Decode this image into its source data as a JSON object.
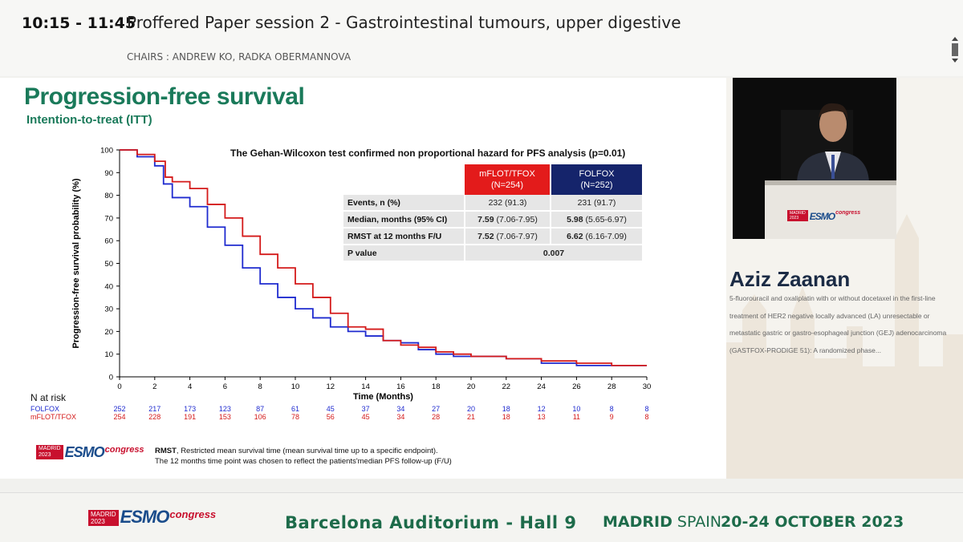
{
  "header": {
    "time": "10:15 - 11:45",
    "session": "Proffered Paper session 2 - Gastrointestinal tumours, upper digestive",
    "chairs": "CHAIRS : ANDREW KO, RADKA OBERMANNOVA"
  },
  "slide": {
    "title": "Progression-free survival",
    "subtitle": "Intention-to-treat (ITT)",
    "stats_title": "The Gehan-Wilcoxon test confirmed non proportional hazard for PFS analysis (p=0.01)",
    "stats_table": {
      "headers": [
        {
          "line1": "mFLOT/TFOX",
          "line2": "(N=254)"
        },
        {
          "line1": "FOLFOX",
          "line2": "(N=252)"
        }
      ],
      "rows": [
        {
          "label": "Events, n (%)",
          "a": "232 (91.3)",
          "b": "231 (91.7)"
        },
        {
          "label": "Median, months (95% CI)",
          "a_bold": "7.59",
          "a": "(7.06-7.95)",
          "b_bold": "5.98",
          "b": "(5.65-6.97)"
        },
        {
          "label": "RMST at 12 months F/U",
          "a_bold": "7.52",
          "a": "(7.06-7.97)",
          "b_bold": "6.62",
          "b": "(6.16-7.09)"
        },
        {
          "label": "P value",
          "merged": "0.007"
        }
      ]
    },
    "n_at_risk": {
      "label": "N at risk",
      "times": [
        0,
        2,
        4,
        6,
        8,
        10,
        12,
        14,
        16,
        18,
        20,
        22,
        24,
        26,
        28,
        30
      ],
      "rows": [
        {
          "name": "FOLFOX",
          "color": "#1f2bcf",
          "values": [
            "252",
            "217",
            "173",
            "123",
            "87",
            "61",
            "45",
            "37",
            "34",
            "27",
            "20",
            "18",
            "12",
            "10",
            "8",
            "8"
          ]
        },
        {
          "name": "mFLOT/TFOX",
          "color": "#d41a1a",
          "values": [
            "254",
            "228",
            "191",
            "153",
            "106",
            "78",
            "56",
            "45",
            "34",
            "28",
            "21",
            "18",
            "13",
            "11",
            "9",
            "8"
          ]
        }
      ]
    },
    "footnote": {
      "bold": "RMST",
      "line1": ", Restricted mean survival time (mean survival time up to a specific endpoint).",
      "line2": "The 12 months time point was chosen to reflect the patients'median PFS follow-up (F/U)"
    },
    "logo": {
      "city": "MADRID",
      "year": "2023",
      "brand": "ESMO",
      "word": "congress"
    }
  },
  "chart_data": {
    "type": "line",
    "title": "",
    "xlabel": "Time (Months)",
    "ylabel": "Progression-free survival probability (%)",
    "xlim": [
      0,
      30
    ],
    "ylim": [
      0,
      100
    ],
    "xticks": [
      0,
      2,
      4,
      6,
      8,
      10,
      12,
      14,
      16,
      18,
      20,
      22,
      24,
      26,
      28,
      30
    ],
    "yticks": [
      0,
      10,
      20,
      30,
      40,
      50,
      60,
      70,
      80,
      90,
      100
    ],
    "grid": false,
    "series": [
      {
        "name": "mFLOT/TFOX",
        "color": "#d41a1a",
        "points": [
          [
            0,
            100
          ],
          [
            1,
            98
          ],
          [
            2,
            95
          ],
          [
            2.6,
            88
          ],
          [
            3,
            86
          ],
          [
            4,
            83
          ],
          [
            5,
            76
          ],
          [
            6,
            70
          ],
          [
            7,
            62
          ],
          [
            8,
            54
          ],
          [
            9,
            48
          ],
          [
            10,
            41
          ],
          [
            11,
            35
          ],
          [
            12,
            28
          ],
          [
            13,
            22
          ],
          [
            14,
            21
          ],
          [
            15,
            16
          ],
          [
            16,
            14
          ],
          [
            17,
            13
          ],
          [
            18,
            11
          ],
          [
            19,
            10
          ],
          [
            20,
            9
          ],
          [
            22,
            8
          ],
          [
            24,
            7
          ],
          [
            26,
            6
          ],
          [
            28,
            5
          ],
          [
            30,
            5
          ]
        ]
      },
      {
        "name": "FOLFOX",
        "color": "#1f2bcf",
        "points": [
          [
            0,
            100
          ],
          [
            1,
            97
          ],
          [
            2,
            93
          ],
          [
            2.5,
            85
          ],
          [
            3,
            79
          ],
          [
            4,
            75
          ],
          [
            5,
            66
          ],
          [
            6,
            58
          ],
          [
            7,
            48
          ],
          [
            8,
            41
          ],
          [
            9,
            35
          ],
          [
            10,
            30
          ],
          [
            11,
            26
          ],
          [
            12,
            22
          ],
          [
            13,
            20
          ],
          [
            14,
            18
          ],
          [
            15,
            16
          ],
          [
            16,
            15
          ],
          [
            17,
            12
          ],
          [
            18,
            10
          ],
          [
            19,
            9
          ],
          [
            20,
            9
          ],
          [
            22,
            8
          ],
          [
            24,
            6
          ],
          [
            26,
            5
          ],
          [
            28,
            5
          ],
          [
            30,
            5
          ]
        ]
      }
    ]
  },
  "speaker_panel": {
    "name": "Aziz Zaanan",
    "abstract": "5-fluorouracil and oxaliplatin with or without docetaxel in the first-line treatment of HER2 negative locally advanced (LA) unresectable or metastatic gastric or gastro-esophageal junction (GEJ) adenocarcinoma (GASTFOX-PRODIGE 51): A randomized phase...",
    "podium_logo": {
      "city": "MADRID",
      "year": "2023",
      "brand": "ESMO",
      "word": "congress"
    }
  },
  "footer": {
    "logo": {
      "city": "MADRID",
      "year": "2023",
      "brand": "ESMO",
      "word": "congress"
    },
    "hall": "Barcelona Auditorium - Hall 9",
    "city": "MADRID",
    "country": "SPAIN",
    "dates": "20-24 OCTOBER 2023"
  }
}
